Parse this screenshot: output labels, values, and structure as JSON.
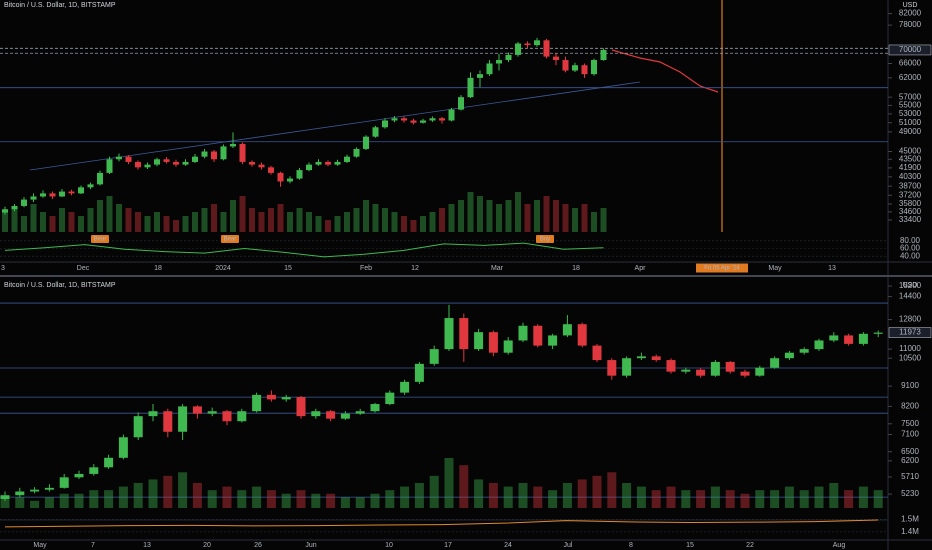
{
  "chart_data": [
    {
      "type": "candlestick",
      "title": "Bitcoin / U.S. Dollar, 1D, BITSTAMP",
      "currency": "USD",
      "log": true,
      "up_color": "#3fb950",
      "down_color": "#e0383e",
      "ylim": [
        31700,
        87000
      ],
      "yticks": [
        82000,
        78000,
        66000,
        62000,
        57000,
        55000,
        53000,
        51000,
        49000,
        45000,
        43500,
        41900,
        40300,
        38700,
        37200,
        35800,
        34600,
        33400
      ],
      "ohlc": [
        [
          34500,
          35400,
          34200,
          35000
        ],
        [
          35000,
          35800,
          34700,
          35500
        ],
        [
          35500,
          36900,
          35300,
          36500
        ],
        [
          36500,
          37500,
          36100,
          37000
        ],
        [
          37000,
          38000,
          36800,
          37500
        ],
        [
          37500,
          37800,
          36600,
          37000
        ],
        [
          37000,
          38200,
          36900,
          37800
        ],
        [
          37800,
          38100,
          37200,
          37500
        ],
        [
          37500,
          38800,
          37400,
          38500
        ],
        [
          38500,
          39300,
          38200,
          39000
        ],
        [
          39000,
          41400,
          38800,
          41000
        ],
        [
          41000,
          44000,
          40800,
          43500
        ],
        [
          43500,
          44600,
          43100,
          44000
        ],
        [
          44000,
          44300,
          42600,
          43000
        ],
        [
          43000,
          43300,
          41600,
          42000
        ],
        [
          42000,
          42900,
          41700,
          42500
        ],
        [
          42500,
          43800,
          42200,
          43500
        ],
        [
          43500,
          43900,
          42700,
          43000
        ],
        [
          43000,
          43400,
          42100,
          42500
        ],
        [
          42500,
          43500,
          42300,
          43000
        ],
        [
          43000,
          44500,
          42800,
          44000
        ],
        [
          44000,
          45500,
          43700,
          45000
        ],
        [
          45000,
          45300,
          43000,
          43500
        ],
        [
          43500,
          46400,
          43300,
          46000
        ],
        [
          46000,
          48900,
          45700,
          46500
        ],
        [
          46500,
          46800,
          42600,
          43000
        ],
        [
          43000,
          43300,
          42100,
          42500
        ],
        [
          42500,
          42900,
          41600,
          42000
        ],
        [
          42000,
          42300,
          40700,
          41000
        ],
        [
          41000,
          41200,
          38600,
          39500
        ],
        [
          39500,
          40400,
          39200,
          40000
        ],
        [
          40000,
          41900,
          39800,
          41500
        ],
        [
          41500,
          42900,
          41300,
          42500
        ],
        [
          42500,
          43500,
          42300,
          43000
        ],
        [
          43000,
          43300,
          42200,
          42500
        ],
        [
          42500,
          43400,
          42300,
          43000
        ],
        [
          43000,
          44400,
          42800,
          44000
        ],
        [
          44000,
          45800,
          43800,
          45500
        ],
        [
          45500,
          48300,
          45300,
          48000
        ],
        [
          48000,
          50300,
          47800,
          50000
        ],
        [
          50000,
          52000,
          49700,
          51500
        ],
        [
          51500,
          52500,
          51100,
          52000
        ],
        [
          52000,
          52400,
          51000,
          51500
        ],
        [
          51500,
          51900,
          50600,
          51000
        ],
        [
          51000,
          51900,
          50800,
          51500
        ],
        [
          51500,
          52400,
          51200,
          52000
        ],
        [
          52000,
          52300,
          50800,
          51500
        ],
        [
          51500,
          54400,
          51300,
          54000
        ],
        [
          54000,
          57500,
          53800,
          57000
        ],
        [
          57000,
          63500,
          56800,
          62000
        ],
        [
          62000,
          64000,
          59500,
          63000
        ],
        [
          63000,
          67000,
          62500,
          66000
        ],
        [
          66000,
          68800,
          64000,
          67000
        ],
        [
          67000,
          69200,
          66400,
          68500
        ],
        [
          68500,
          72500,
          68000,
          72000
        ],
        [
          72000,
          72700,
          70500,
          71500
        ],
        [
          71500,
          73800,
          71000,
          73000
        ],
        [
          73000,
          73400,
          67500,
          68000
        ],
        [
          68000,
          69000,
          65500,
          67000
        ],
        [
          67000,
          68000,
          63500,
          64000
        ],
        [
          64000,
          66200,
          63600,
          65500
        ],
        [
          65500,
          66000,
          62000,
          63000
        ],
        [
          63000,
          67400,
          62600,
          67000
        ],
        [
          67000,
          70500,
          66800,
          70000
        ]
      ],
      "volume": [
        5,
        6,
        4,
        7,
        5,
        4,
        6,
        5,
        4,
        6,
        8,
        9,
        7,
        6,
        5,
        4,
        5,
        4,
        3,
        4,
        5,
        6,
        7,
        5,
        8,
        9,
        6,
        5,
        6,
        7,
        5,
        6,
        5,
        4,
        3,
        4,
        5,
        6,
        8,
        7,
        6,
        5,
        4,
        3,
        4,
        5,
        6,
        7,
        8,
        10,
        9,
        8,
        7,
        8,
        10,
        7,
        8,
        9,
        8,
        7,
        6,
        7,
        5,
        6
      ],
      "hlines": [
        {
          "value": 70500
        },
        {
          "value": 69000
        },
        {
          "value": 59400
        },
        {
          "value": 46950
        }
      ],
      "indicator": {
        "ylim": [
          30,
          90
        ],
        "yticks": [
          {
            "value": 80,
            "label": "80.00"
          },
          {
            "value": 60,
            "label": "60.00"
          },
          {
            "value": 40,
            "label": "40.00"
          }
        ],
        "values": [
          55,
          62,
          70,
          58,
          52,
          48,
          60,
          50,
          38,
          45,
          55,
          72,
          68,
          74,
          58,
          62
        ],
        "color": "#3fb950"
      },
      "signals": [
        {
          "label": "Bear"
        },
        {
          "label": "Bear"
        },
        {
          "label": "Buy"
        }
      ],
      "xlabels": [
        "3",
        "Dec",
        "18",
        "2024",
        "15",
        "Feb",
        "12",
        "Mar",
        "18",
        "Apr",
        "May",
        "13"
      ],
      "date_badge": "Fri 05 Apr '24"
    },
    {
      "type": "candlestick",
      "title": "Bitcoin / U.S. Dollar, 1D, BITSTAMP",
      "currency": "USD",
      "log": true,
      "up_color": "#3fb950",
      "down_color": "#e0383e",
      "ylim": [
        4870,
        15680
      ],
      "yticks": [
        15200,
        14400,
        12800,
        11000,
        10500,
        9100,
        8200,
        7500,
        7100,
        6500,
        6200,
        5710,
        5230
      ],
      "ohlc": [
        [
          5100,
          5300,
          5050,
          5200
        ],
        [
          5200,
          5400,
          5150,
          5300
        ],
        [
          5300,
          5420,
          5250,
          5350
        ],
        [
          5350,
          5500,
          5300,
          5400
        ],
        [
          5400,
          5800,
          5380,
          5700
        ],
        [
          5700,
          5900,
          5650,
          5800
        ],
        [
          5800,
          6100,
          5750,
          6000
        ],
        [
          6000,
          6400,
          5950,
          6300
        ],
        [
          6300,
          7100,
          6250,
          7000
        ],
        [
          7000,
          7950,
          6900,
          7800
        ],
        [
          7800,
          8300,
          7600,
          8000
        ],
        [
          8000,
          8100,
          7000,
          7200
        ],
        [
          7200,
          8300,
          6900,
          8200
        ],
        [
          8200,
          8250,
          7700,
          7900
        ],
        [
          7900,
          8150,
          7800,
          8000
        ],
        [
          8000,
          8050,
          7450,
          7600
        ],
        [
          7600,
          8100,
          7550,
          8000
        ],
        [
          8000,
          8800,
          7950,
          8700
        ],
        [
          8700,
          8900,
          8400,
          8500
        ],
        [
          8500,
          8700,
          8400,
          8600
        ],
        [
          8600,
          8650,
          7700,
          7800
        ],
        [
          7800,
          8100,
          7700,
          8000
        ],
        [
          8000,
          8050,
          7600,
          7700
        ],
        [
          7700,
          8000,
          7650,
          7900
        ],
        [
          7900,
          8100,
          7850,
          8000
        ],
        [
          8000,
          8350,
          7950,
          8300
        ],
        [
          8300,
          8900,
          8250,
          8800
        ],
        [
          8800,
          9400,
          8700,
          9300
        ],
        [
          9300,
          10300,
          9200,
          10200
        ],
        [
          10200,
          11200,
          10100,
          11000
        ],
        [
          11000,
          13800,
          10900,
          12900
        ],
        [
          12900,
          13200,
          10300,
          11000
        ],
        [
          11000,
          12200,
          10900,
          12000
        ],
        [
          12000,
          12100,
          10600,
          10800
        ],
        [
          10800,
          11700,
          10700,
          11500
        ],
        [
          11500,
          12600,
          11400,
          12400
        ],
        [
          12400,
          12500,
          11100,
          11200
        ],
        [
          11200,
          11900,
          11000,
          11800
        ],
        [
          11800,
          13100,
          11700,
          12500
        ],
        [
          12500,
          12600,
          11100,
          11200
        ],
        [
          11200,
          11300,
          10300,
          10400
        ],
        [
          10400,
          10500,
          9400,
          9600
        ],
        [
          9600,
          10600,
          9500,
          10500
        ],
        [
          10500,
          10800,
          10400,
          10600
        ],
        [
          10600,
          10700,
          10300,
          10400
        ],
        [
          10400,
          10500,
          9700,
          9800
        ],
        [
          9800,
          10000,
          9700,
          9900
        ],
        [
          9900,
          10000,
          9500,
          9600
        ],
        [
          9600,
          10400,
          9550,
          10300
        ],
        [
          10300,
          10350,
          9700,
          9800
        ],
        [
          9800,
          9900,
          9500,
          9600
        ],
        [
          9600,
          10100,
          9550,
          10000
        ],
        [
          10000,
          10600,
          9950,
          10500
        ],
        [
          10500,
          10900,
          10400,
          10800
        ],
        [
          10800,
          11100,
          10700,
          11000
        ],
        [
          11000,
          11600,
          10900,
          11500
        ],
        [
          11500,
          12000,
          11400,
          11800
        ],
        [
          11800,
          11900,
          11200,
          11300
        ],
        [
          11300,
          12000,
          11200,
          11900
        ],
        [
          11900,
          12100,
          11700,
          11973
        ]
      ],
      "volume": [
        3,
        3,
        2,
        3,
        4,
        4,
        5,
        5,
        6,
        7,
        8,
        9,
        10,
        7,
        5,
        6,
        5,
        6,
        5,
        4,
        5,
        4,
        4,
        3,
        3,
        4,
        5,
        6,
        7,
        9,
        14,
        12,
        8,
        7,
        6,
        7,
        6,
        5,
        7,
        8,
        9,
        10,
        7,
        6,
        5,
        6,
        5,
        5,
        6,
        5,
        4,
        5,
        5,
        6,
        5,
        6,
        7,
        5,
        6,
        5
      ],
      "hlines": [
        {
          "value": 13930
        },
        {
          "value": 9985
        },
        {
          "value": 8600
        },
        {
          "value": 7920
        },
        {
          "value": 5150
        }
      ],
      "indicator": {
        "ylim": [
          1350000,
          1560000
        ],
        "yticks": [
          {
            "value": 1500000,
            "label": "1.5M"
          },
          {
            "value": 1400000,
            "label": "1.4M"
          }
        ],
        "values": [
          1440000,
          1445000,
          1450000,
          1452000,
          1448000,
          1450000,
          1455000,
          1458000,
          1470000,
          1490000,
          1480000,
          1475000,
          1478000,
          1482000,
          1495000
        ],
        "color": "#e08a2c"
      },
      "xlabels": [
        "May",
        "7",
        "13",
        "20",
        "26",
        "Jun",
        "10",
        "17",
        "24",
        "Jul",
        "8",
        "15",
        "22",
        "Aug"
      ]
    }
  ]
}
